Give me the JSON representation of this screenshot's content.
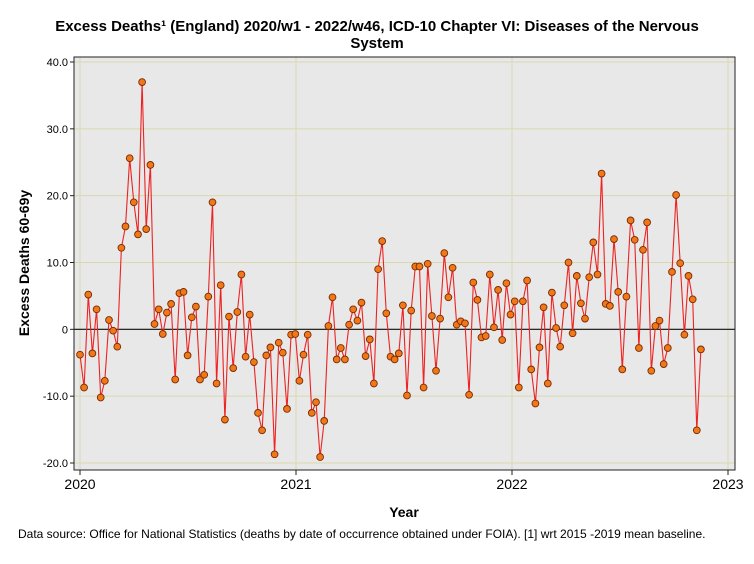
{
  "chart_data": {
    "type": "line",
    "title_line1": "Excess Deaths¹ (England) 2020/w1 - 2022/w46, ICD-10 Chapter VI: Diseases of the Nervous",
    "title_line2": "System",
    "xlabel": "Year",
    "ylabel": "Excess Deaths 60-69y",
    "xlim": [
      2020.0,
      2023.0
    ],
    "ylim": [
      -20,
      40
    ],
    "xticks": [
      "2020",
      "2021",
      "2022",
      "2023"
    ],
    "yticks": [
      "-20.0",
      "-10.0",
      "0",
      "10.0",
      "20.0",
      "30.0",
      "40.0"
    ],
    "reference_line_y": 0,
    "grid": true,
    "colors": {
      "line": "#ee2222",
      "marker_fill": "#f07818",
      "marker_edge": "#7a2a00",
      "grid": "#d9d9b0",
      "background": "#e8e8e8"
    },
    "series": [
      {
        "name": "Excess deaths (weekly, 2020/w1 - 2022/w46)",
        "start_year": 2020.0,
        "week_step": 0.019165,
        "values": [
          -3.8,
          -8.7,
          5.2,
          -3.6,
          3.0,
          -10.2,
          -7.7,
          1.4,
          -0.2,
          -2.6,
          12.2,
          15.4,
          25.6,
          19.0,
          14.2,
          37.0,
          15.0,
          24.6,
          0.8,
          3.0,
          -0.7,
          2.5,
          3.8,
          -7.5,
          5.4,
          5.6,
          -3.9,
          1.8,
          3.4,
          -7.5,
          -6.8,
          4.9,
          19.0,
          -8.1,
          6.6,
          -13.5,
          1.9,
          -5.8,
          2.6,
          8.2,
          -4.1,
          2.2,
          -4.9,
          -12.5,
          -15.1,
          -3.9,
          -2.7,
          -18.7,
          -2.0,
          -3.5,
          -11.9,
          -0.8,
          -0.7,
          -7.7,
          -3.8,
          -0.8,
          -12.5,
          -10.9,
          -19.1,
          -13.7,
          0.5,
          4.8,
          -4.5,
          -2.8,
          -4.5,
          0.7,
          3.0,
          1.3,
          4.0,
          -4.0,
          -1.5,
          -8.1,
          9.0,
          13.2,
          2.4,
          -4.1,
          -4.5,
          -3.6,
          3.6,
          -9.9,
          2.8,
          9.4,
          9.4,
          -8.7,
          9.8,
          2.0,
          -6.2,
          1.6,
          11.4,
          4.8,
          9.2,
          0.7,
          1.2,
          0.9,
          -9.8,
          7.0,
          4.4,
          -1.2,
          -1.0,
          8.2,
          0.3,
          5.9,
          -1.6,
          6.9,
          2.2,
          4.2,
          -8.7,
          4.2,
          7.3,
          -6.0,
          -11.1,
          -2.7,
          3.3,
          -8.1,
          5.5,
          0.2,
          -2.6,
          3.6,
          10.0,
          -0.6,
          8.0,
          3.9,
          1.6,
          7.8,
          13.0,
          8.2,
          23.3,
          3.8,
          3.5,
          13.5,
          5.6,
          -6.0,
          4.9,
          16.3,
          13.4,
          -2.8,
          11.9,
          16.0,
          -6.2,
          0.5,
          1.3,
          -5.2,
          -2.8,
          8.6,
          20.1,
          9.9,
          -0.8,
          8.0,
          4.5,
          -15.1,
          -3.0
        ]
      }
    ]
  },
  "footnote": "Data source: Office for National Statistics (deaths by date of occurrence obtained under FOIA). [1] wrt 2015 -2019 mean baseline."
}
